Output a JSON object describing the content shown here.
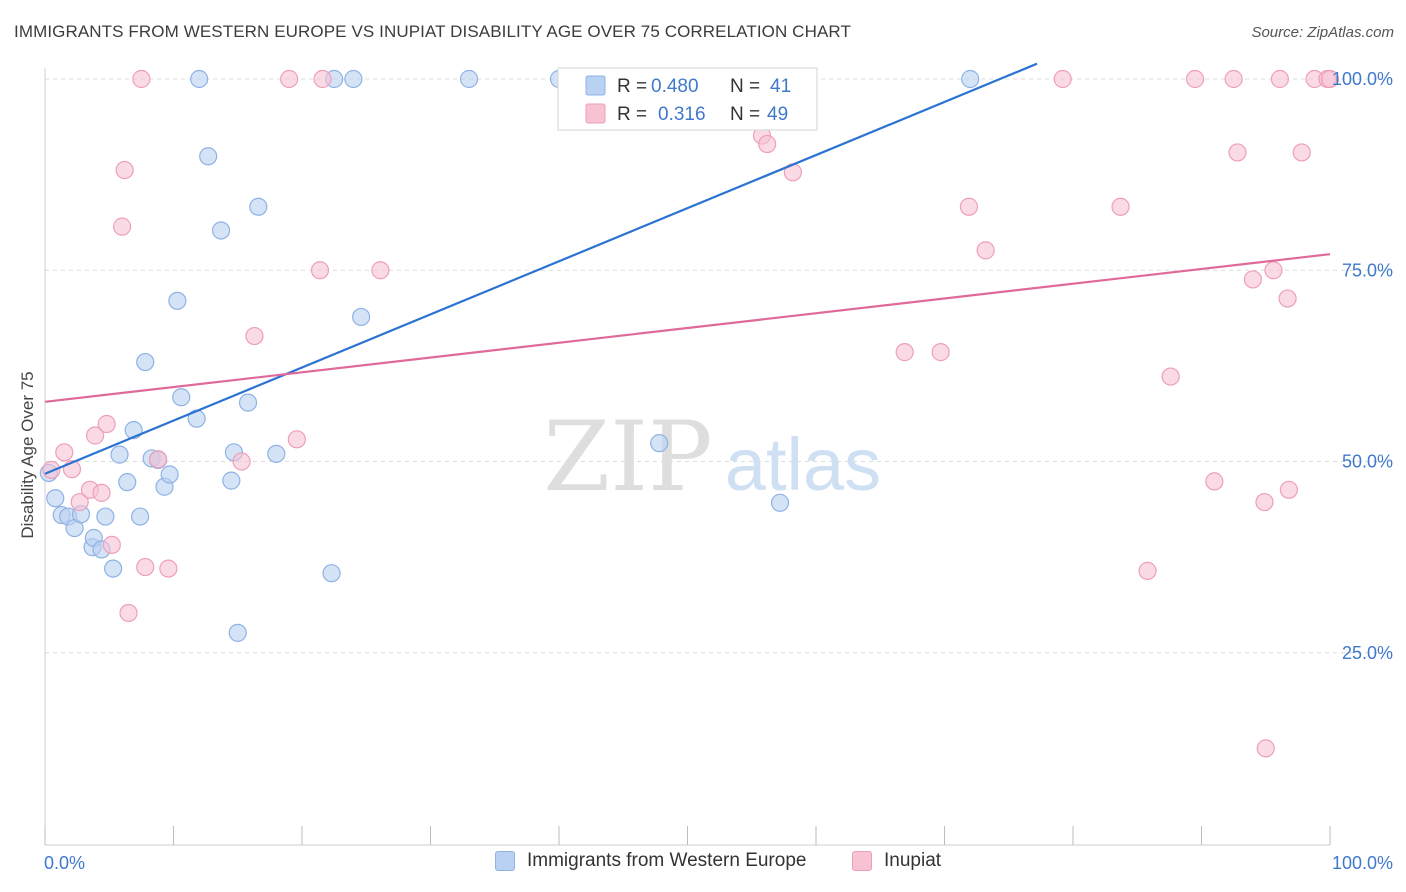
{
  "title": "IMMIGRANTS FROM WESTERN EUROPE VS INUPIAT DISABILITY AGE OVER 75 CORRELATION CHART",
  "source": "Source: ZipAtlas.com",
  "watermark": {
    "zip": "ZIP",
    "atlas": "atlas"
  },
  "colors": {
    "blue_fill": "#b9d1f2",
    "blue_stroke": "#8fb2e4",
    "blue_line": "#2b73d2",
    "pink_fill": "#f7c3d3",
    "pink_stroke": "#ee9fb8",
    "pink_line": "#e0699a",
    "axis_label": "#3f79cc",
    "grid": "#dcdcdc"
  },
  "legend": {
    "rows": [
      {
        "r_label": "R =",
        "r_value": "0.480",
        "n_label": "N =",
        "n_value": "41"
      },
      {
        "r_label": "R =",
        "r_value": "0.316",
        "n_label": "N =",
        "n_value": "49"
      }
    ]
  },
  "bottom_legend": [
    "Immigrants from Western Europe",
    "Inupiat"
  ],
  "chart_data": {
    "type": "scatter",
    "title": "IMMIGRANTS FROM WESTERN EUROPE VS INUPIAT DISABILITY AGE OVER 75 CORRELATION CHART",
    "xlabel": "",
    "ylabel": "Disability Age Over 75",
    "xlim": [
      0,
      100
    ],
    "ylim": [
      0,
      102
    ],
    "x_tick_labels": [
      "0.0%",
      "100.0%"
    ],
    "y_ticks": [
      25,
      50,
      75,
      100
    ],
    "y_tick_labels": [
      "25.0%",
      "50.0%",
      "75.0%",
      "100.0%"
    ],
    "grid": true,
    "legend_position": "top-center",
    "series": [
      {
        "name": "Immigrants from Western Europe",
        "color": "#b9d1f2",
        "trend": {
          "x": [
            0,
            77.2
          ],
          "y": [
            48.4,
            102
          ]
        },
        "points": [
          [
            0.3,
            48.5
          ],
          [
            0.8,
            45.2
          ],
          [
            1.3,
            43.0
          ],
          [
            1.8,
            42.8
          ],
          [
            2.3,
            41.3
          ],
          [
            2.8,
            43.1
          ],
          [
            3.7,
            38.8
          ],
          [
            3.8,
            40.0
          ],
          [
            4.4,
            38.5
          ],
          [
            4.7,
            42.8
          ],
          [
            5.3,
            36.0
          ],
          [
            5.8,
            50.9
          ],
          [
            6.4,
            47.3
          ],
          [
            6.9,
            54.1
          ],
          [
            7.4,
            42.8
          ],
          [
            7.8,
            63.0
          ],
          [
            8.3,
            50.4
          ],
          [
            8.8,
            50.2
          ],
          [
            9.3,
            46.7
          ],
          [
            9.7,
            48.3
          ],
          [
            10.3,
            71.0
          ],
          [
            10.6,
            58.4
          ],
          [
            11.8,
            55.6
          ],
          [
            12.7,
            89.9
          ],
          [
            13.7,
            80.2
          ],
          [
            14.5,
            47.5
          ],
          [
            14.7,
            51.2
          ],
          [
            15.0,
            27.6
          ],
          [
            15.8,
            57.7
          ],
          [
            16.6,
            83.3
          ],
          [
            18.0,
            51.0
          ],
          [
            22.3,
            35.4
          ],
          [
            22.5,
            100.0
          ],
          [
            24.6,
            68.9
          ],
          [
            12.0,
            100.0
          ],
          [
            24.0,
            100.0
          ],
          [
            33.0,
            100.0
          ],
          [
            40.0,
            100.0
          ],
          [
            47.8,
            52.4
          ],
          [
            57.2,
            44.6
          ],
          [
            72.0,
            100.0
          ]
        ]
      },
      {
        "name": "Inupiat",
        "color": "#f7c3d3",
        "trend": {
          "x": [
            0,
            100
          ],
          "y": [
            57.8,
            77.1
          ]
        },
        "points": [
          [
            0.5,
            48.9
          ],
          [
            1.5,
            51.2
          ],
          [
            2.1,
            49.0
          ],
          [
            2.7,
            44.7
          ],
          [
            3.5,
            46.3
          ],
          [
            3.9,
            53.4
          ],
          [
            4.4,
            45.9
          ],
          [
            4.8,
            54.9
          ],
          [
            5.2,
            39.1
          ],
          [
            6.0,
            80.7
          ],
          [
            6.2,
            88.1
          ],
          [
            6.5,
            30.2
          ],
          [
            7.5,
            100.0
          ],
          [
            7.8,
            36.2
          ],
          [
            8.8,
            50.3
          ],
          [
            9.6,
            36.0
          ],
          [
            16.3,
            66.4
          ],
          [
            15.3,
            50.0
          ],
          [
            19.0,
            100.0
          ],
          [
            19.6,
            52.9
          ],
          [
            21.4,
            75.0
          ],
          [
            21.6,
            100.0
          ],
          [
            26.1,
            75.0
          ],
          [
            55.8,
            92.6
          ],
          [
            56.2,
            91.5
          ],
          [
            58.2,
            87.8
          ],
          [
            66.9,
            64.3
          ],
          [
            69.7,
            64.3
          ],
          [
            71.9,
            83.3
          ],
          [
            73.2,
            77.6
          ],
          [
            79.2,
            100.0
          ],
          [
            83.7,
            83.3
          ],
          [
            85.8,
            35.7
          ],
          [
            87.6,
            61.1
          ],
          [
            89.5,
            100.0
          ],
          [
            91.0,
            47.4
          ],
          [
            92.5,
            100.0
          ],
          [
            92.8,
            90.4
          ],
          [
            94.0,
            73.8
          ],
          [
            94.9,
            44.7
          ],
          [
            95.0,
            12.5
          ],
          [
            95.6,
            75.0
          ],
          [
            96.1,
            100.0
          ],
          [
            96.7,
            71.3
          ],
          [
            96.8,
            46.3
          ],
          [
            97.8,
            90.4
          ],
          [
            98.8,
            100.0
          ],
          [
            99.8,
            100.0
          ],
          [
            100.0,
            100.0
          ]
        ]
      }
    ]
  }
}
